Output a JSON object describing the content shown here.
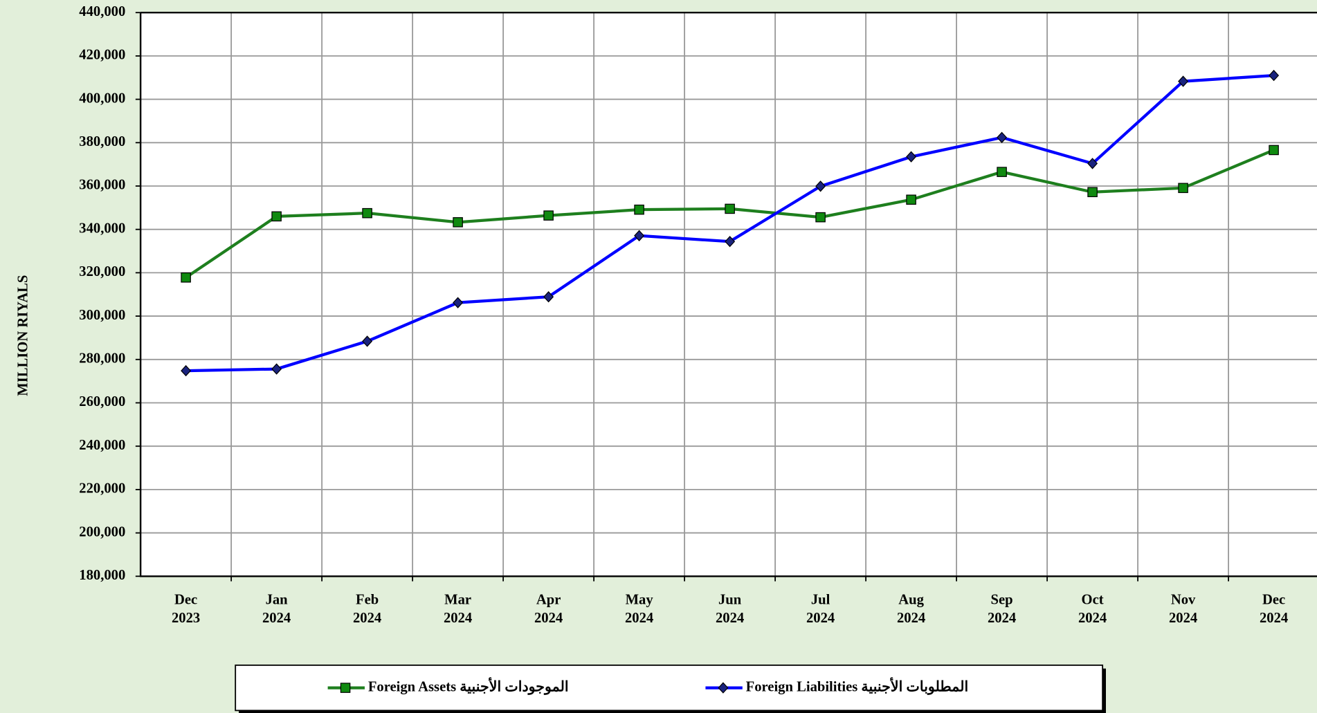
{
  "chart_data": {
    "type": "line",
    "y_label": "MILLION RIYALS",
    "categories": [
      "Dec\n2023",
      "Jan\n2024",
      "Feb\n2024",
      "Mar\n2024",
      "Apr\n2024",
      "May\n2024",
      "Jun\n2024",
      "Jul\n2024",
      "Aug\n2024",
      "Sep\n2024",
      "Oct\n2024",
      "Nov\n2024",
      "Dec\n2024"
    ],
    "series": [
      {
        "name": "Foreign Assets الموجودات الأجنبية",
        "color": "#1e7f1e",
        "marker_color": "#108a10",
        "marker": "square",
        "values": [
          317800,
          346000,
          347500,
          343300,
          346400,
          349100,
          349500,
          345600,
          353700,
          366500,
          357200,
          359100,
          376600
        ]
      },
      {
        "name": "Foreign Liabilities المطلوبات الأجنبية",
        "color": "#0000ff",
        "marker_color": "#1a237e",
        "marker": "diamond",
        "values": [
          274800,
          275600,
          288400,
          306200,
          308900,
          337100,
          334400,
          359900,
          373500,
          382400,
          370400,
          408300,
          411000
        ]
      }
    ],
    "ylim": [
      180000,
      440000
    ],
    "yticks": [
      {
        "value": 180000,
        "label": "180,000"
      },
      {
        "value": 200000,
        "label": "200,000"
      },
      {
        "value": 220000,
        "label": "220,000"
      },
      {
        "value": 240000,
        "label": "240,000"
      },
      {
        "value": 260000,
        "label": "260,000"
      },
      {
        "value": 280000,
        "label": "280,000"
      },
      {
        "value": 300000,
        "label": "300,000"
      },
      {
        "value": 320000,
        "label": "320,000"
      },
      {
        "value": 340000,
        "label": "340,000"
      },
      {
        "value": 360000,
        "label": "360,000"
      },
      {
        "value": 380000,
        "label": "380,000"
      },
      {
        "value": 400000,
        "label": "400,000"
      },
      {
        "value": 420000,
        "label": "420,000"
      },
      {
        "value": 440000,
        "label": "440,000"
      }
    ],
    "grid": true,
    "legend": "bottom"
  }
}
